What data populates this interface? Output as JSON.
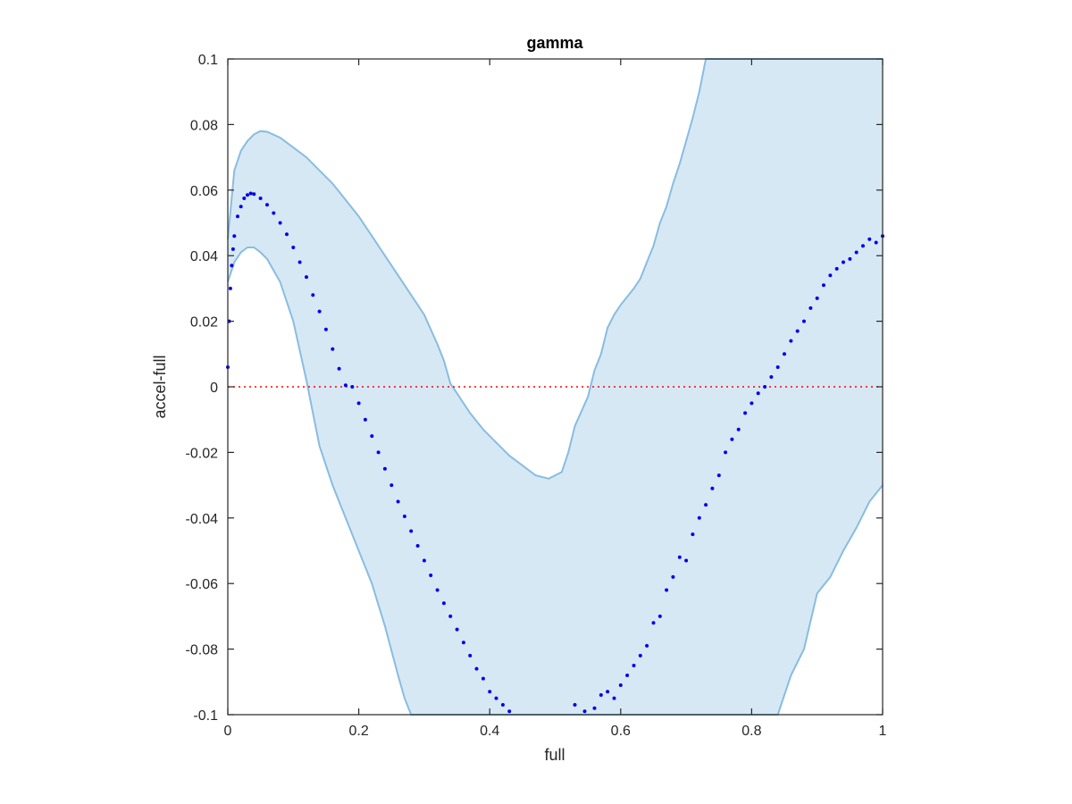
{
  "chart_data": {
    "type": "scatter",
    "title": "gamma",
    "xlabel": "full",
    "ylabel": "accel-full",
    "xlim": [
      0,
      1
    ],
    "ylim": [
      -0.1,
      0.1
    ],
    "xticks": [
      0,
      0.2,
      0.4,
      0.6,
      0.8,
      1
    ],
    "xtick_labels": [
      "0",
      "0.2",
      "0.4",
      "0.6",
      "0.8",
      "1"
    ],
    "yticks": [
      -0.1,
      -0.08,
      -0.06,
      -0.04,
      -0.02,
      0,
      0.02,
      0.04,
      0.06,
      0.08,
      0.1
    ],
    "ytick_labels": [
      "-0.1",
      "-0.08",
      "-0.06",
      "-0.04",
      "-0.02",
      "0",
      "0.02",
      "0.04",
      "0.06",
      "0.08",
      "0.1"
    ],
    "grid": false,
    "colors": {
      "band_fill": "#d7e8f5",
      "band_line": "#88bde0",
      "points": "#0000ee",
      "reference": "#ff0000",
      "axes": "#262626"
    },
    "reference_line": {
      "y": 0,
      "style": "dotted"
    },
    "band": {
      "upper": [
        [
          0.0,
          0.045
        ],
        [
          0.01,
          0.066
        ],
        [
          0.02,
          0.072
        ],
        [
          0.03,
          0.075
        ],
        [
          0.04,
          0.077
        ],
        [
          0.05,
          0.078
        ],
        [
          0.06,
          0.0778
        ],
        [
          0.08,
          0.076
        ],
        [
          0.1,
          0.073
        ],
        [
          0.12,
          0.07
        ],
        [
          0.14,
          0.066
        ],
        [
          0.16,
          0.062
        ],
        [
          0.18,
          0.057
        ],
        [
          0.2,
          0.052
        ],
        [
          0.22,
          0.046
        ],
        [
          0.24,
          0.04
        ],
        [
          0.26,
          0.034
        ],
        [
          0.28,
          0.028
        ],
        [
          0.3,
          0.022
        ],
        [
          0.32,
          0.013
        ],
        [
          0.33,
          0.008
        ],
        [
          0.34,
          0.001
        ],
        [
          0.35,
          -0.002
        ],
        [
          0.37,
          -0.008
        ],
        [
          0.39,
          -0.013
        ],
        [
          0.41,
          -0.017
        ],
        [
          0.43,
          -0.021
        ],
        [
          0.45,
          -0.024
        ],
        [
          0.47,
          -0.027
        ],
        [
          0.49,
          -0.028
        ],
        [
          0.51,
          -0.026
        ],
        [
          0.52,
          -0.02
        ],
        [
          0.53,
          -0.012
        ],
        [
          0.55,
          -0.003
        ],
        [
          0.56,
          0.005
        ],
        [
          0.57,
          0.01
        ],
        [
          0.58,
          0.018
        ],
        [
          0.59,
          0.022
        ],
        [
          0.6,
          0.025
        ],
        [
          0.62,
          0.03
        ],
        [
          0.63,
          0.033
        ],
        [
          0.64,
          0.038
        ],
        [
          0.65,
          0.043
        ],
        [
          0.66,
          0.05
        ],
        [
          0.67,
          0.055
        ],
        [
          0.68,
          0.062
        ],
        [
          0.69,
          0.068
        ],
        [
          0.7,
          0.075
        ],
        [
          0.71,
          0.082
        ],
        [
          0.72,
          0.09
        ],
        [
          0.73,
          0.1
        ],
        [
          1.0,
          0.1
        ]
      ],
      "lower": [
        [
          0.0,
          0.032
        ],
        [
          0.01,
          0.038
        ],
        [
          0.02,
          0.041
        ],
        [
          0.03,
          0.0425
        ],
        [
          0.04,
          0.0425
        ],
        [
          0.05,
          0.041
        ],
        [
          0.06,
          0.039
        ],
        [
          0.08,
          0.032
        ],
        [
          0.1,
          0.02
        ],
        [
          0.12,
          0.002
        ],
        [
          0.14,
          -0.018
        ],
        [
          0.16,
          -0.03
        ],
        [
          0.18,
          -0.04
        ],
        [
          0.2,
          -0.05
        ],
        [
          0.22,
          -0.06
        ],
        [
          0.24,
          -0.073
        ],
        [
          0.26,
          -0.088
        ],
        [
          0.27,
          -0.095
        ],
        [
          0.28,
          -0.1
        ],
        [
          0.84,
          -0.1
        ],
        [
          0.86,
          -0.088
        ],
        [
          0.88,
          -0.08
        ],
        [
          0.9,
          -0.063
        ],
        [
          0.92,
          -0.058
        ],
        [
          0.94,
          -0.05
        ],
        [
          0.96,
          -0.043
        ],
        [
          0.98,
          -0.035
        ],
        [
          1.0,
          -0.03
        ]
      ]
    },
    "series": [
      {
        "values": [
          [
            0.0,
            0.006
          ],
          [
            0.002,
            0.02
          ],
          [
            0.004,
            0.03
          ],
          [
            0.006,
            0.037
          ],
          [
            0.008,
            0.042
          ],
          [
            0.01,
            0.046
          ],
          [
            0.015,
            0.052
          ],
          [
            0.02,
            0.055
          ],
          [
            0.025,
            0.0575
          ],
          [
            0.03,
            0.0585
          ],
          [
            0.035,
            0.059
          ],
          [
            0.04,
            0.0588
          ],
          [
            0.05,
            0.0575
          ],
          [
            0.06,
            0.0555
          ],
          [
            0.07,
            0.053
          ],
          [
            0.08,
            0.05
          ],
          [
            0.09,
            0.0465
          ],
          [
            0.1,
            0.0425
          ],
          [
            0.11,
            0.038
          ],
          [
            0.12,
            0.0335
          ],
          [
            0.13,
            0.028
          ],
          [
            0.14,
            0.023
          ],
          [
            0.15,
            0.0175
          ],
          [
            0.16,
            0.0115
          ],
          [
            0.17,
            0.0055
          ],
          [
            0.18,
            0.0005
          ],
          [
            0.19,
            0.0
          ],
          [
            0.2,
            -0.005
          ],
          [
            0.21,
            -0.01
          ],
          [
            0.22,
            -0.015
          ],
          [
            0.23,
            -0.02
          ],
          [
            0.24,
            -0.025
          ],
          [
            0.25,
            -0.03
          ],
          [
            0.26,
            -0.035
          ],
          [
            0.27,
            -0.0395
          ],
          [
            0.28,
            -0.044
          ],
          [
            0.29,
            -0.0485
          ],
          [
            0.3,
            -0.053
          ],
          [
            0.31,
            -0.0575
          ],
          [
            0.32,
            -0.062
          ],
          [
            0.33,
            -0.066
          ],
          [
            0.34,
            -0.07
          ],
          [
            0.35,
            -0.074
          ],
          [
            0.36,
            -0.078
          ],
          [
            0.37,
            -0.082
          ],
          [
            0.38,
            -0.086
          ],
          [
            0.39,
            -0.089
          ],
          [
            0.4,
            -0.093
          ],
          [
            0.41,
            -0.095
          ],
          [
            0.42,
            -0.097
          ],
          [
            0.43,
            -0.099
          ],
          [
            0.53,
            -0.097
          ],
          [
            0.545,
            -0.099
          ],
          [
            0.56,
            -0.098
          ],
          [
            0.57,
            -0.094
          ],
          [
            0.58,
            -0.093
          ],
          [
            0.59,
            -0.095
          ],
          [
            0.6,
            -0.091
          ],
          [
            0.61,
            -0.088
          ],
          [
            0.62,
            -0.085
          ],
          [
            0.63,
            -0.082
          ],
          [
            0.64,
            -0.079
          ],
          [
            0.65,
            -0.072
          ],
          [
            0.66,
            -0.07
          ],
          [
            0.67,
            -0.062
          ],
          [
            0.68,
            -0.058
          ],
          [
            0.69,
            -0.052
          ],
          [
            0.7,
            -0.053
          ],
          [
            0.71,
            -0.045
          ],
          [
            0.72,
            -0.04
          ],
          [
            0.73,
            -0.036
          ],
          [
            0.74,
            -0.031
          ],
          [
            0.75,
            -0.027
          ],
          [
            0.76,
            -0.02
          ],
          [
            0.77,
            -0.016
          ],
          [
            0.78,
            -0.013
          ],
          [
            0.79,
            -0.008
          ],
          [
            0.8,
            -0.005
          ],
          [
            0.81,
            -0.002
          ],
          [
            0.82,
            0.0
          ],
          [
            0.83,
            0.003
          ],
          [
            0.84,
            0.006
          ],
          [
            0.85,
            0.01
          ],
          [
            0.86,
            0.014
          ],
          [
            0.87,
            0.017
          ],
          [
            0.88,
            0.02
          ],
          [
            0.89,
            0.024
          ],
          [
            0.9,
            0.027
          ],
          [
            0.91,
            0.031
          ],
          [
            0.92,
            0.034
          ],
          [
            0.93,
            0.036
          ],
          [
            0.94,
            0.038
          ],
          [
            0.95,
            0.039
          ],
          [
            0.96,
            0.041
          ],
          [
            0.97,
            0.043
          ],
          [
            0.98,
            0.045
          ],
          [
            0.99,
            0.044
          ],
          [
            1.0,
            0.046
          ]
        ]
      }
    ]
  }
}
